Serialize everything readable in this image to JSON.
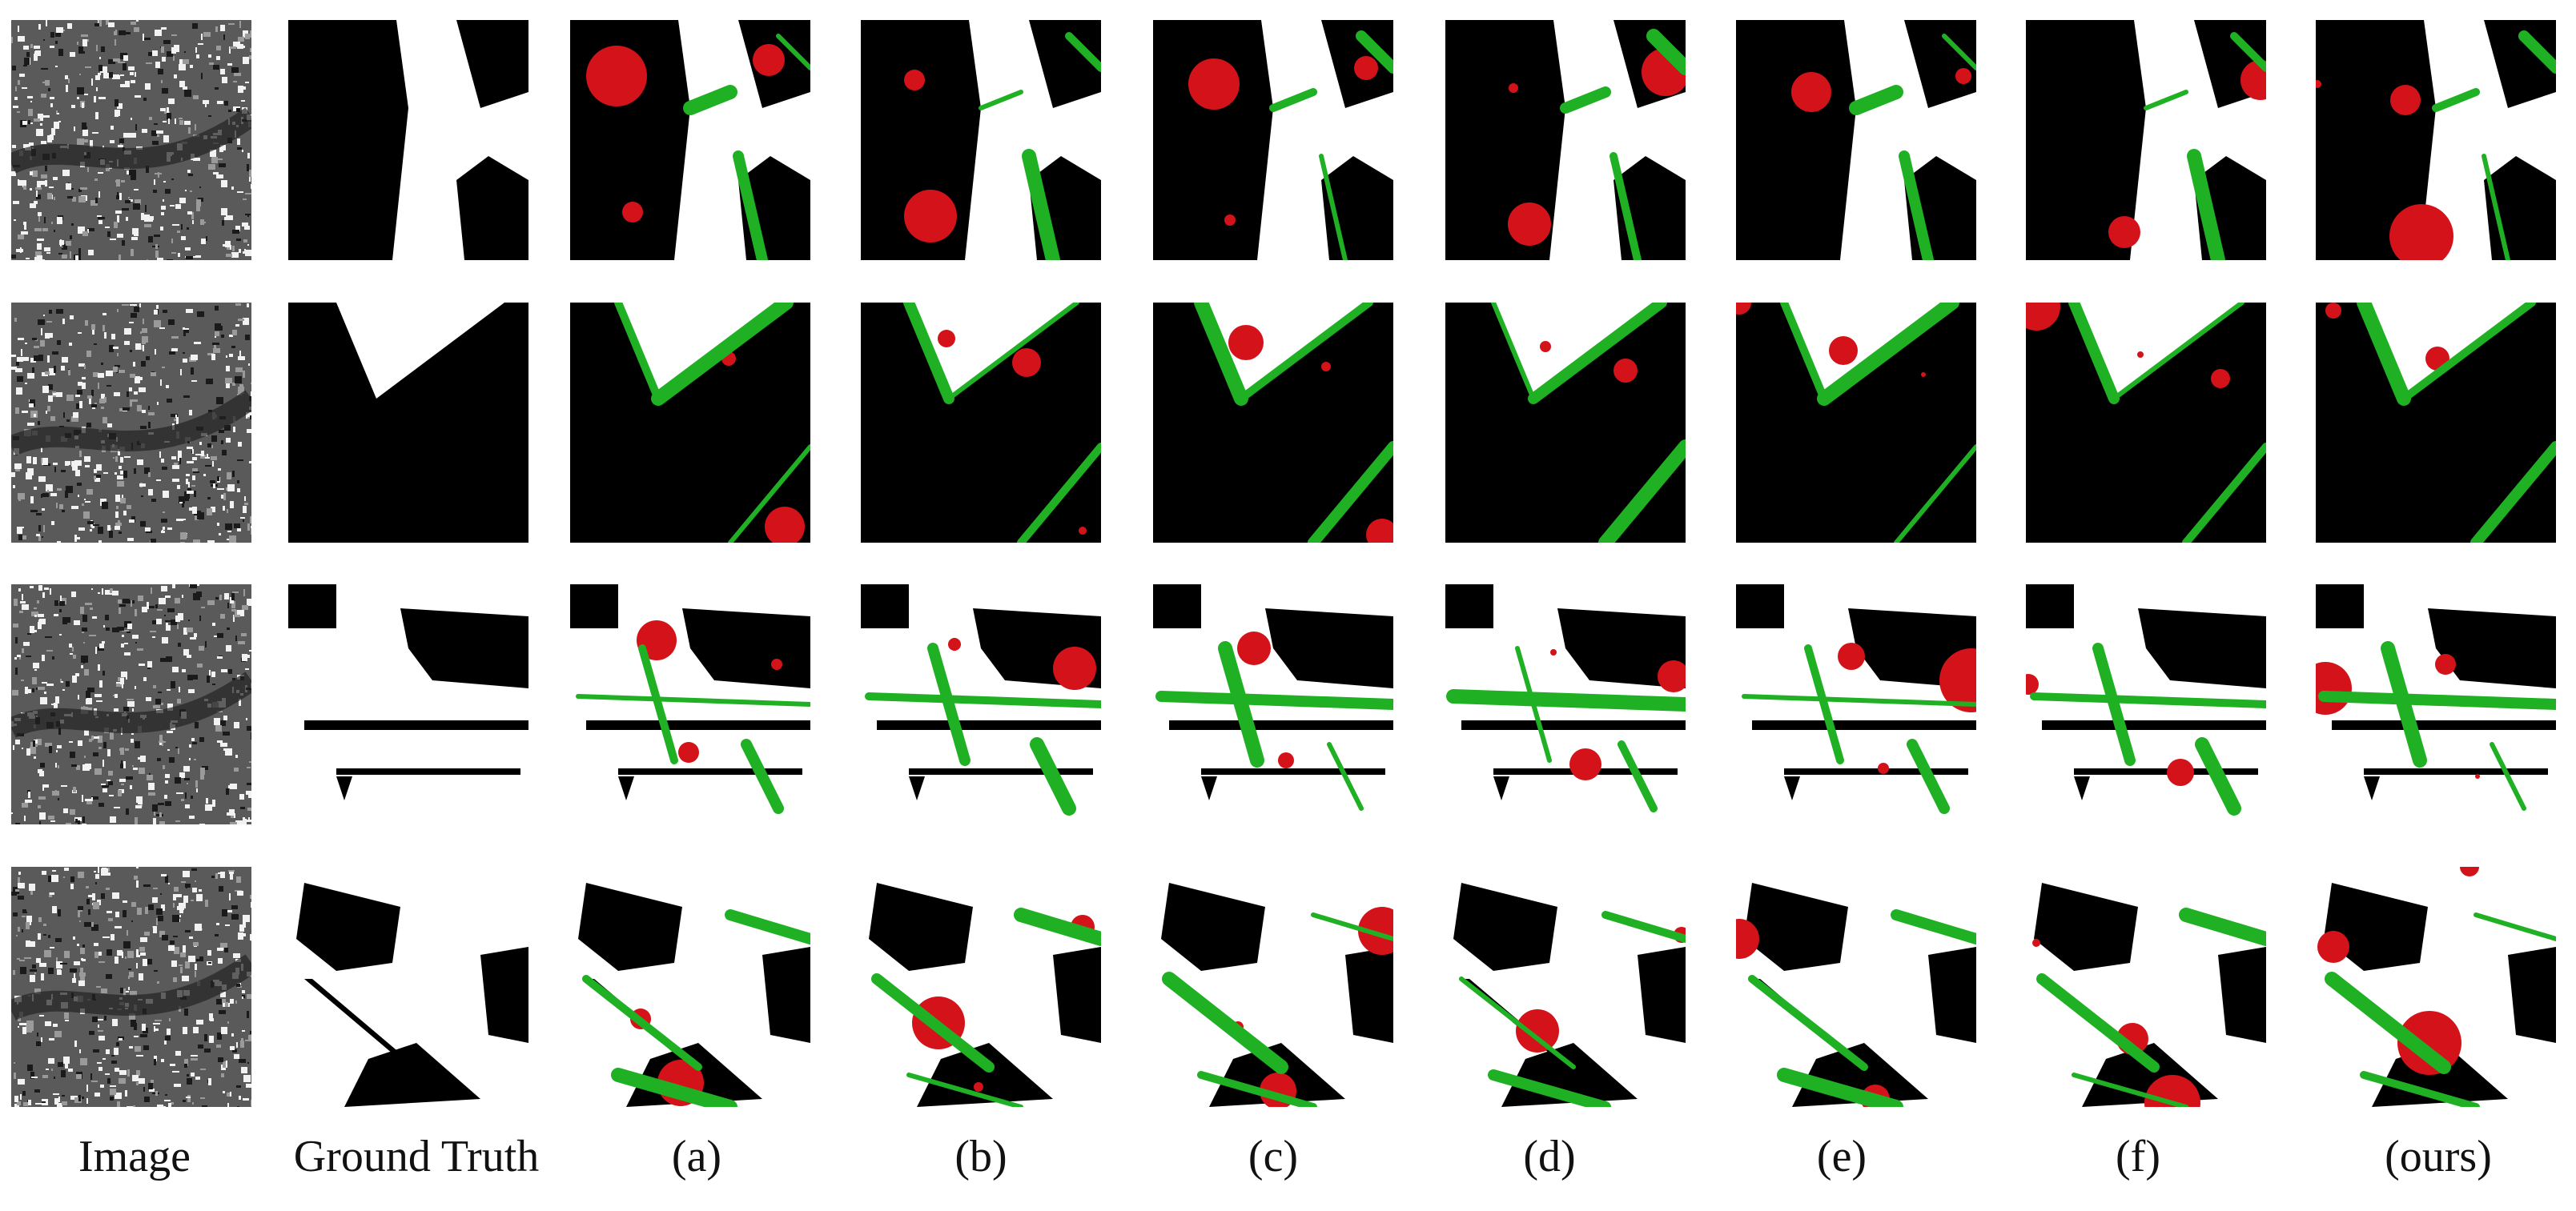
{
  "figure": {
    "column_labels": [
      "Image",
      "Ground Truth",
      "(a)",
      "(b)",
      "(c)",
      "(d)",
      "(e)",
      "(f)",
      "(ours)"
    ],
    "colors": {
      "background_class": "#000000",
      "foreground_class": "#ffffff",
      "false_positive": "#d4121a",
      "false_negative": "#1fb024"
    },
    "rows": 4
  }
}
